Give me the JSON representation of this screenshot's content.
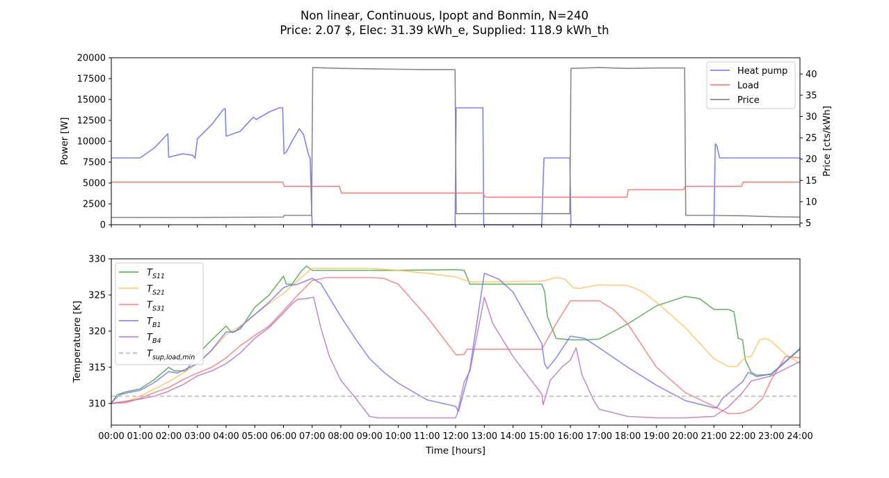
{
  "title_line1": "Non linear, Continuous, Ipopt and Bonmin, N=240",
  "title_line2": "Price: 2.07 $, Elec: 31.39 kWh_e, Supplied: 118.9 kWh_th",
  "chart_data": [
    {
      "type": "line",
      "ylabel": "Power [W]",
      "y2label": "Price [cts/kWh]",
      "xlim": [
        0,
        24
      ],
      "ylim": [
        0,
        20000
      ],
      "y2lim": [
        4.6,
        43.8
      ],
      "yticks": [
        0,
        2500,
        5000,
        7500,
        10000,
        12500,
        15000,
        17500,
        20000
      ],
      "yticklabels": [
        "0",
        "2500",
        "5000",
        "7500",
        "10000",
        "12500",
        "15000",
        "17500",
        "20000"
      ],
      "y2ticks": [
        5,
        10,
        15,
        20,
        25,
        30,
        35,
        40
      ],
      "y2ticklabels": [
        "5",
        "10",
        "15",
        "20",
        "25",
        "30",
        "35",
        "40"
      ],
      "legend_position": "top-right",
      "series": [
        {
          "name": "Heat pump",
          "color": "#8080ff",
          "axis": "left",
          "x": [
            0,
            1,
            1.5,
            1.97,
            2.0,
            2.5,
            2.85,
            2.92,
            3.0,
            3.5,
            3.9,
            3.97,
            4.0,
            4.5,
            4.95,
            5.05,
            5.5,
            5.85,
            5.97,
            6.02,
            6.1,
            6.3,
            6.55,
            6.7,
            6.88,
            6.93,
            6.98,
            7.0,
            11.98,
            12.02,
            12.95,
            12.98,
            15.0,
            15.08,
            15.98,
            16.02,
            21.0,
            21.05,
            21.1,
            21.2,
            22,
            24
          ],
          "y": [
            8000,
            8000,
            9200,
            10900,
            8100,
            8500,
            8300,
            7950,
            10300,
            12000,
            13800,
            13900,
            10600,
            11200,
            12900,
            12600,
            13500,
            14000,
            14000,
            8500,
            8700,
            10000,
            11500,
            10800,
            8300,
            7950,
            2000,
            0,
            0,
            14000,
            14000,
            0,
            0,
            8000,
            8000,
            0,
            0,
            9700,
            9500,
            8000,
            8000,
            8000
          ]
        },
        {
          "name": "Load",
          "color": "#ff8080",
          "axis": "left",
          "x": [
            0,
            5.98,
            6.02,
            7.95,
            8.02,
            11.95,
            12.0,
            12.97,
            13.02,
            17.97,
            18.02,
            19.95,
            20.0,
            21.97,
            22.02,
            24
          ],
          "y": [
            5100,
            5100,
            4600,
            4600,
            3800,
            3800,
            3800,
            3800,
            3300,
            3300,
            4200,
            4200,
            4600,
            4600,
            5100,
            5100
          ]
        },
        {
          "name": "Price",
          "color": "#888888",
          "axis": "right",
          "x": [
            0,
            3,
            6,
            6.02,
            6.98,
            7.02,
            8,
            9,
            10,
            11,
            11.98,
            12.02,
            15.98,
            16.02,
            17,
            18,
            19,
            19.98,
            20.02,
            21,
            22,
            23,
            24
          ],
          "y": [
            6.3,
            6.3,
            6.4,
            6.8,
            6.8,
            41.5,
            41.3,
            41.2,
            41.1,
            41.0,
            41.0,
            7.2,
            7.2,
            41.3,
            41.5,
            41.3,
            41.4,
            41.4,
            6.8,
            6.8,
            6.7,
            6.5,
            6.4
          ]
        }
      ]
    },
    {
      "type": "line",
      "xlabel": "Time [hours]",
      "ylabel": "Temperatuere [K]",
      "xlim": [
        0,
        24
      ],
      "ylim": [
        307,
        330
      ],
      "yticks": [
        310,
        315,
        320,
        325,
        330
      ],
      "yticklabels": [
        "310",
        "315",
        "320",
        "325",
        "330"
      ],
      "xticks": [
        0,
        1,
        2,
        3,
        4,
        5,
        6,
        7,
        8,
        9,
        10,
        11,
        12,
        13,
        14,
        15,
        16,
        17,
        18,
        19,
        20,
        21,
        22,
        23,
        24
      ],
      "xticklabels": [
        "00:00",
        "01:00",
        "02:00",
        "03:00",
        "04:00",
        "05:00",
        "06:00",
        "07:00",
        "08:00",
        "09:00",
        "10:00",
        "11:00",
        "12:00",
        "13:00",
        "14:00",
        "15:00",
        "16:00",
        "17:00",
        "18:00",
        "19:00",
        "20:00",
        "21:00",
        "22:00",
        "23:00",
        "24:00"
      ],
      "legend_position": "top-left",
      "series": [
        {
          "name": "T_S11",
          "color": "#3aa23a",
          "x": [
            0,
            0.2,
            0.5,
            1,
            1.5,
            2,
            2.2,
            2.6,
            3,
            3.5,
            4,
            4.2,
            4.5,
            5,
            5.5,
            6,
            6.1,
            6.3,
            6.6,
            6.8,
            7,
            7.5,
            8,
            10,
            12,
            12.3,
            12.5,
            15,
            15.1,
            15.2,
            15.5,
            16,
            16.5,
            17,
            18,
            19,
            20,
            20.5,
            21,
            21.5,
            21.7,
            21.85,
            22,
            22.1,
            22.3,
            22.5,
            23,
            24
          ],
          "y": [
            310,
            311.2,
            311.6,
            312,
            313.3,
            315,
            314.5,
            314.5,
            316.8,
            318.8,
            320.7,
            319.8,
            320.3,
            323.3,
            325,
            327.6,
            326.5,
            326.5,
            328.2,
            329,
            328.4,
            328.4,
            328.4,
            328.4,
            328.5,
            328.4,
            326.5,
            326.5,
            325.5,
            322,
            319,
            318.8,
            318.8,
            318.9,
            321,
            323.5,
            324.8,
            324.5,
            323,
            323,
            322.7,
            319,
            318.8,
            316,
            314.3,
            313.9,
            314,
            317.5
          ]
        },
        {
          "name": "T_S21",
          "color": "#ffc04d",
          "x": [
            0,
            0.5,
            1,
            1.5,
            2,
            2.5,
            3,
            3.5,
            4,
            4.5,
            5,
            5.5,
            6,
            6.5,
            7,
            8,
            9,
            10,
            11,
            12,
            12.5,
            15,
            15.5,
            15.8,
            16.1,
            16.3,
            17,
            18,
            18.5,
            19,
            20,
            21,
            21.5,
            21.8,
            22.1,
            22.3,
            22.6,
            22.8,
            23,
            23.5,
            24
          ],
          "y": [
            310,
            310.2,
            311,
            312,
            313,
            314.2,
            315.5,
            317.3,
            319.5,
            320.7,
            322.3,
            323.8,
            325.2,
            327,
            328.7,
            328.7,
            328.7,
            328.4,
            328,
            327.5,
            326.8,
            326.9,
            327.4,
            327.2,
            326,
            325.9,
            326.4,
            326.3,
            325.5,
            324,
            320.5,
            316.2,
            315.1,
            315.1,
            316.4,
            316.5,
            318.8,
            319,
            318.6,
            316.8,
            315.5
          ]
        },
        {
          "name": "T_S31",
          "color": "#ff6b6b",
          "x": [
            0,
            0.5,
            1,
            1.5,
            2,
            2.5,
            3,
            3.5,
            4,
            4.5,
            5,
            5.5,
            6,
            6.5,
            7,
            7.5,
            8,
            8.5,
            9,
            9.5,
            10,
            11,
            12,
            12.05,
            12.3,
            12.4,
            15,
            15.5,
            16,
            17,
            17.5,
            18,
            18.5,
            19,
            20,
            21,
            21.5,
            21.8,
            22,
            22.3,
            22.7,
            23,
            23.5,
            24
          ],
          "y": [
            310,
            310.1,
            310.7,
            311.5,
            312.2,
            313.3,
            314.2,
            315,
            316.3,
            318,
            319.4,
            320.7,
            322.8,
            325,
            327,
            327.4,
            327.4,
            327.4,
            327.4,
            327.3,
            326.5,
            322,
            316.8,
            316.7,
            316.8,
            317.5,
            317.5,
            321,
            324.2,
            324.2,
            323,
            321,
            318,
            315,
            311.5,
            309.6,
            308.6,
            308.6,
            308.7,
            309.2,
            310.7,
            313.3,
            316.5,
            316.3
          ]
        },
        {
          "name": "T_B1",
          "color": "#6c6cff",
          "x": [
            0,
            0.1,
            0.3,
            0.6,
            1,
            1.5,
            2,
            2.3,
            3,
            3.5,
            4,
            4.3,
            5,
            5.5,
            6,
            6.2,
            6.5,
            7,
            7.3,
            8,
            8.5,
            9,
            9.5,
            10,
            11,
            12,
            12.1,
            12.5,
            13,
            13.5,
            14,
            15,
            15.1,
            15.2,
            15.5,
            16,
            16.5,
            17,
            18,
            19,
            20,
            21,
            21.1,
            21.3,
            21.7,
            22,
            22.2,
            22.5,
            23,
            24
          ],
          "y": [
            310,
            310.5,
            311.2,
            311.5,
            311.8,
            312.9,
            314.4,
            314.2,
            315.5,
            317.4,
            319.9,
            319.9,
            322.3,
            324,
            326,
            326.3,
            326.5,
            327.3,
            326.6,
            322,
            319,
            316.2,
            314.3,
            312.8,
            310.5,
            309.6,
            308.9,
            314.8,
            328,
            327.2,
            325.4,
            318.3,
            315.5,
            314.8,
            316.3,
            319.3,
            319,
            317.7,
            315,
            312.5,
            310.4,
            309.4,
            309.4,
            310.7,
            312,
            313,
            314.3,
            313.7,
            314.1,
            317.6
          ]
        },
        {
          "name": "T_B4",
          "color": "#b06ec0",
          "x": [
            0,
            0.5,
            1,
            1.5,
            2,
            2.5,
            3,
            3.5,
            4,
            4.5,
            5,
            5.5,
            6,
            6.3,
            6.5,
            6.8,
            7.05,
            7.3,
            7.6,
            8,
            8.5,
            9,
            9.3,
            9.5,
            10,
            11,
            12,
            12.05,
            12.3,
            12.5,
            13,
            13.3,
            14,
            15,
            15.05,
            15.3,
            15.7,
            16,
            16.2,
            16.4,
            16.8,
            17,
            18,
            19,
            20,
            21,
            21.5,
            22,
            22.3,
            23,
            24
          ],
          "y": [
            310,
            310.3,
            310.6,
            311,
            311.7,
            312.6,
            313.8,
            314.5,
            315.5,
            317,
            319,
            320.5,
            322.5,
            323.8,
            324.4,
            324.5,
            324.7,
            320.5,
            316.5,
            313.2,
            310.8,
            308.2,
            308,
            308,
            308,
            308,
            308,
            308.5,
            313,
            314.5,
            324.7,
            321,
            316.5,
            311.3,
            309.8,
            313.2,
            315,
            316,
            317.7,
            314,
            310.5,
            309.2,
            308.2,
            308,
            308,
            308.2,
            309.5,
            311.5,
            313.1,
            313.8,
            315.8
          ]
        },
        {
          "name": "T_sup,load,min",
          "color": "#bbbbbb",
          "dashed": true,
          "x": [
            0,
            24
          ],
          "y": [
            311,
            311
          ]
        }
      ]
    }
  ]
}
